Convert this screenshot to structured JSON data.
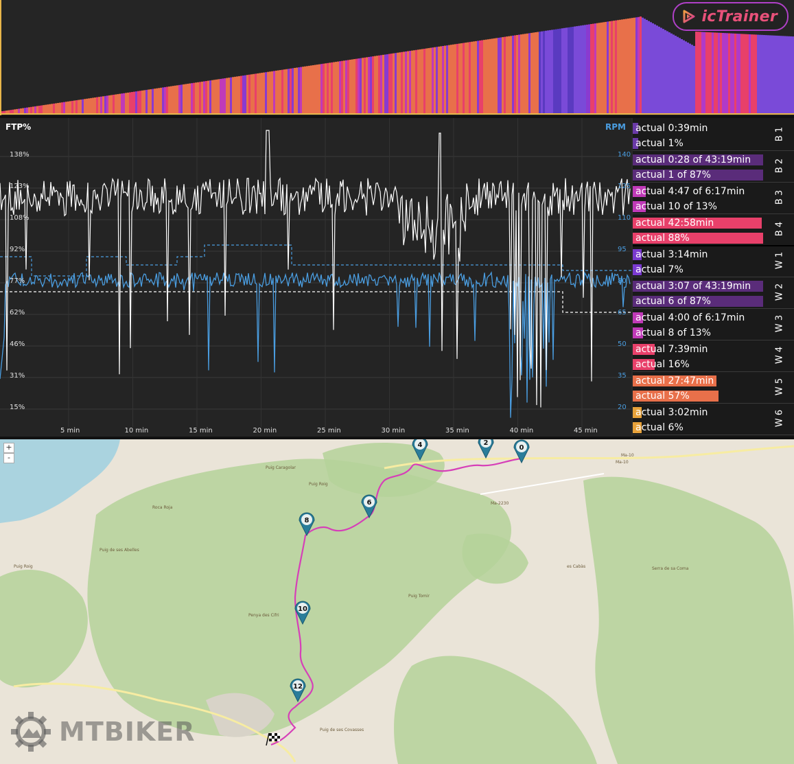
{
  "app": {
    "logo_text": "icTrainer",
    "logo_icon": "play-triangle-icon",
    "brand_color": "#e8517a"
  },
  "graph": {
    "left_axis_title": "FTP%",
    "right_axis_title": "RPM",
    "left_ticks": [
      "138%",
      "123%",
      "108%",
      "92%",
      "77%",
      "62%",
      "46%",
      "31%",
      "15%"
    ],
    "right_ticks": [
      "140",
      "125",
      "110",
      "95",
      "80",
      "65",
      "50",
      "35",
      "20"
    ],
    "x_ticks": [
      "5 min",
      "10 min",
      "15 min",
      "20 min",
      "25 min",
      "30 min",
      "35 min",
      "40 min",
      "45 min"
    ],
    "power_color": "#ffffff",
    "cadence_color": "#4a9de0"
  },
  "stats": {
    "groups": [
      {
        "label": "B 1",
        "rows": [
          {
            "text": "actual 0:39min",
            "bar_fraction": 0.02,
            "color": "#6a3aa8"
          },
          {
            "text": "actual 1%",
            "bar_fraction": 0.02,
            "color": "#6a3aa8"
          }
        ]
      },
      {
        "label": "B 2",
        "rows": [
          {
            "text": "actual 0:28 of 43:19min",
            "bar_fraction": 1.0,
            "color": "#5a2c7a"
          },
          {
            "text": "actual 1 of 87%",
            "bar_fraction": 1.0,
            "color": "#5a2c7a"
          }
        ]
      },
      {
        "label": "B 3",
        "rows": [
          {
            "text": "actual 4:47 of 6:17min",
            "bar_fraction": 0.1,
            "color": "#c03ab8"
          },
          {
            "text": "actual 10 of 13%",
            "bar_fraction": 0.1,
            "color": "#c03ab8"
          }
        ]
      },
      {
        "label": "B 4",
        "rows": [
          {
            "text": "actual 42:58min",
            "bar_fraction": 0.99,
            "color": "#e8406a"
          },
          {
            "text": "actual 88%",
            "bar_fraction": 1.0,
            "color": "#e8406a"
          }
        ]
      },
      {
        "label": "W 1",
        "rows": [
          {
            "text": "actual 3:14min",
            "bar_fraction": 0.07,
            "color": "#7a3ad0"
          },
          {
            "text": "actual 7%",
            "bar_fraction": 0.07,
            "color": "#7a3ad0"
          }
        ]
      },
      {
        "label": "W 2",
        "rows": [
          {
            "text": "actual 3:07 of 43:19min",
            "bar_fraction": 1.0,
            "color": "#5a2c7a"
          },
          {
            "text": "actual 6 of 87%",
            "bar_fraction": 1.0,
            "color": "#5a2c7a"
          }
        ]
      },
      {
        "label": "W 3",
        "rows": [
          {
            "text": "actual 4:00 of 6:17min",
            "bar_fraction": 0.08,
            "color": "#c03ab8"
          },
          {
            "text": "actual 8 of 13%",
            "bar_fraction": 0.08,
            "color": "#c03ab8"
          }
        ]
      },
      {
        "label": "W 4",
        "rows": [
          {
            "text": "actual 7:39min",
            "bar_fraction": 0.17,
            "color": "#e8406a"
          },
          {
            "text": "actual 16%",
            "bar_fraction": 0.17,
            "color": "#e8406a"
          }
        ]
      },
      {
        "label": "W 5",
        "rows": [
          {
            "text": "actual 27:47min",
            "bar_fraction": 0.64,
            "color": "#e8704a"
          },
          {
            "text": "actual 57%",
            "bar_fraction": 0.66,
            "color": "#e8704a"
          }
        ]
      },
      {
        "label": "W 6",
        "rows": [
          {
            "text": "actual 3:02min",
            "bar_fraction": 0.07,
            "color": "#e8a23a"
          },
          {
            "text": "actual 6%",
            "bar_fraction": 0.07,
            "color": "#e8a23a"
          }
        ]
      }
    ]
  },
  "map": {
    "zoom_in": "+",
    "zoom_out": "-",
    "markers": [
      "0",
      "2",
      "4",
      "6",
      "8",
      "10",
      "12"
    ],
    "finish_icon": "checkered-flag-icon",
    "route_color": "#d63fb8",
    "labels": [
      "Puig Caragolar",
      "Puig Roig",
      "Roca Roja",
      "Puig de ses Abelles",
      "Puig Roig",
      "Penya des Cifri",
      "Puig de ses Covasses",
      "Puig Tomir",
      "Ma-10",
      "Ma-2230",
      "Ma-10",
      "es Cabàs",
      "Serra de sa Coma"
    ],
    "watermark": "MTBIKER"
  }
}
